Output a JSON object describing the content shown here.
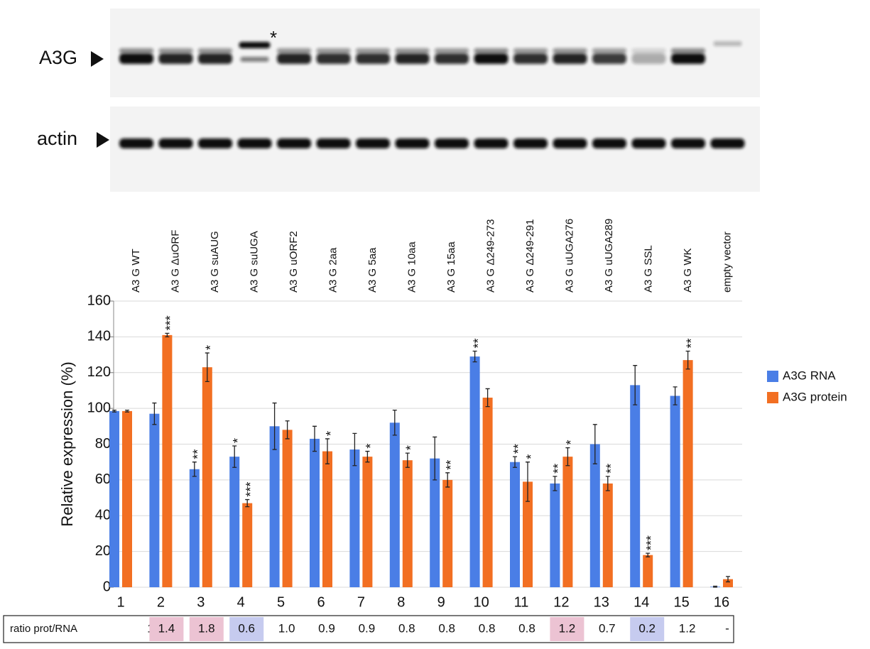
{
  "blot": {
    "labels": [
      "A3G",
      "actin"
    ],
    "star": "*"
  },
  "chart_data": {
    "type": "bar",
    "categories": [
      "1",
      "2",
      "3",
      "4",
      "5",
      "6",
      "7",
      "8",
      "9",
      "10",
      "11",
      "12",
      "13",
      "14",
      "15",
      "16"
    ],
    "construct_labels": [
      "A3 G WT",
      "A3 G ΔuORF",
      "A3 G suAUG",
      "A3 G suUGA",
      "A3 G uORF2",
      "A3 G 2aa",
      "A3 G 5aa",
      "A3 G 10aa",
      "A3 G 15aa",
      "A3 G  Δ249-273",
      "A3 G  Δ249-291",
      "A3 G uUGA276",
      "A3 G  uUGA289",
      "A3 G SSL",
      "A3 G WK",
      "empty vector"
    ],
    "ylabel": "Relative expression (%)",
    "ylim": [
      0,
      160
    ],
    "yticks": [
      0,
      20,
      40,
      60,
      80,
      100,
      120,
      140,
      160
    ],
    "grid": true,
    "legend": "right",
    "series": [
      {
        "name": "A3G RNA",
        "color": "#4a7ee6",
        "values": [
          98.5,
          97,
          66,
          73,
          90,
          83,
          77,
          92,
          72,
          129,
          70,
          58,
          80,
          113,
          107,
          0.3
        ],
        "errors": [
          0.5,
          6,
          4,
          6,
          13,
          7,
          9,
          7,
          12,
          3,
          3,
          4,
          11,
          11,
          5,
          0.3
        ],
        "stars": [
          null,
          null,
          "**",
          "*",
          null,
          null,
          null,
          null,
          null,
          "**",
          "**",
          "**",
          null,
          null,
          null,
          null
        ]
      },
      {
        "name": "A3G protein",
        "color": "#f26f22",
        "values": [
          98.5,
          141,
          123,
          47,
          88,
          76,
          73,
          71,
          60,
          106,
          59,
          73,
          58,
          18,
          127,
          4.5
        ],
        "errors": [
          0.5,
          1,
          8,
          2,
          5,
          7,
          3,
          4,
          4,
          5,
          11,
          5,
          4,
          1,
          5,
          1.5
        ],
        "stars": [
          null,
          "***",
          "*",
          "***",
          null,
          "*",
          "*",
          "*",
          "**",
          null,
          "*",
          "*",
          "**",
          "***",
          "**",
          null
        ]
      }
    ],
    "ratio_table": {
      "label": "ratio prot/RNA",
      "values": [
        "1",
        "1.4",
        "1.8",
        "0.6",
        "1.0",
        "0.9",
        "0.9",
        "0.8",
        "0.8",
        "0.8",
        "0.8",
        "1.2",
        "0.7",
        "0.2",
        "1.2",
        "-"
      ],
      "colors": [
        null,
        "#ecc3d3",
        "#ecc3d3",
        "#c6cbef",
        null,
        null,
        null,
        null,
        null,
        null,
        null,
        "#ecc3d3",
        null,
        "#c6cbef",
        null,
        null
      ]
    }
  }
}
